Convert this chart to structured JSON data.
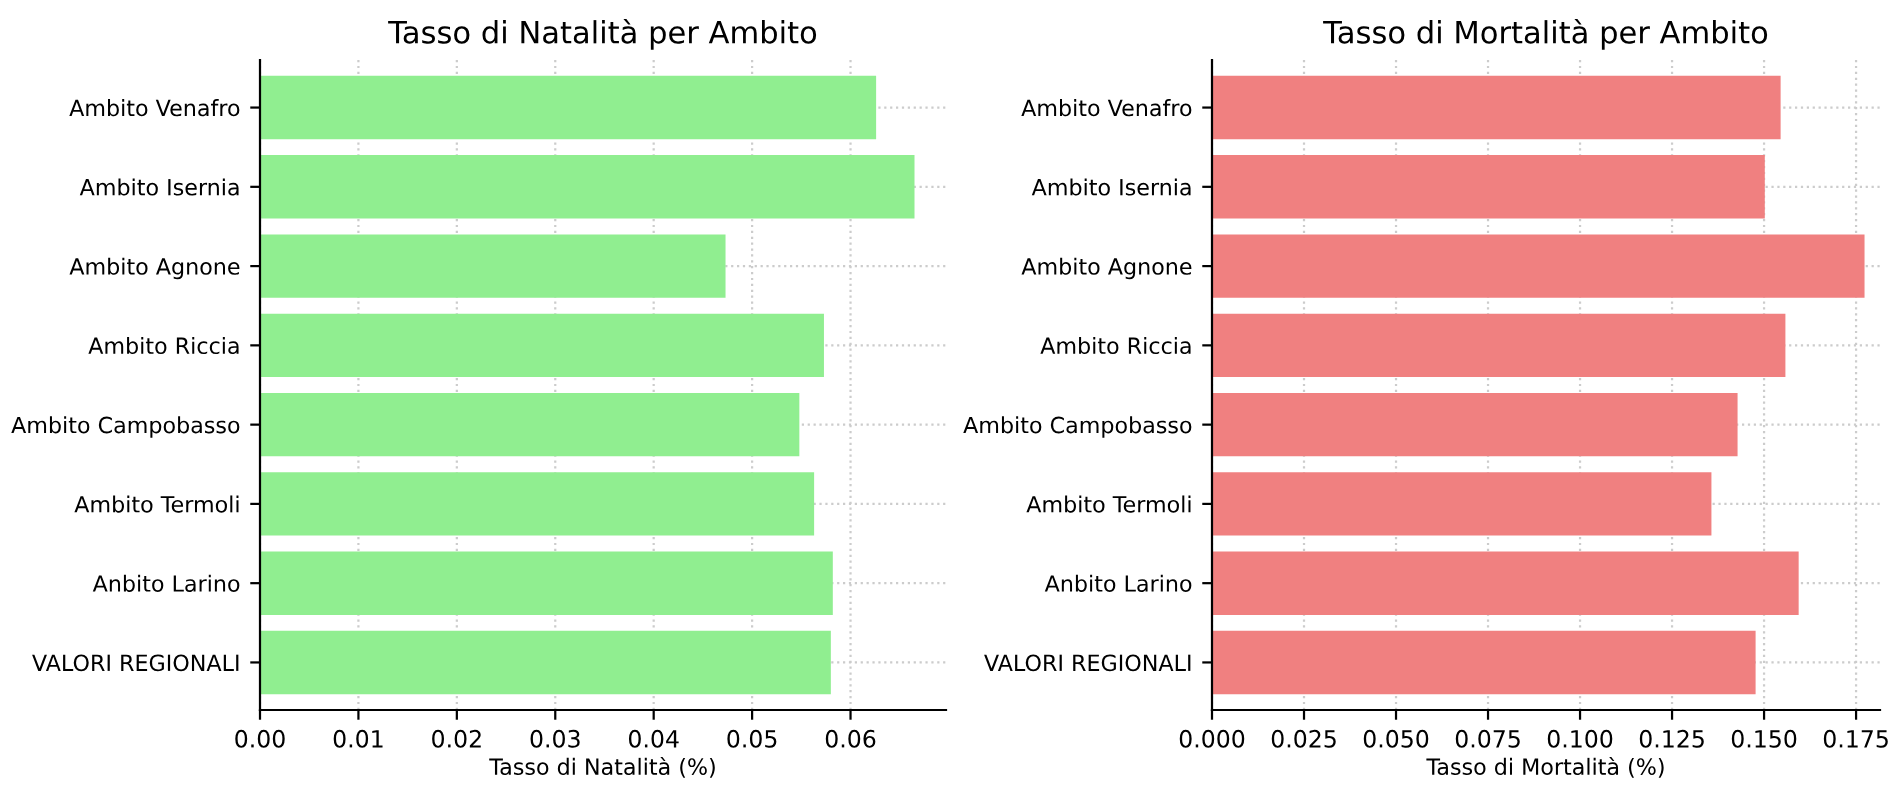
{
  "chart_data": [
    {
      "type": "bar",
      "orientation": "horizontal",
      "title": "Tasso di Natalità per Ambito",
      "xlabel": "Tasso di Natalità (%)",
      "categories": [
        "Ambito Venafro",
        "Ambito Isernia",
        "Ambito Agnone",
        "Ambito Riccia",
        "Ambito Campobasso",
        "Ambito Termoli",
        "Anbito Larino",
        "VALORI REGIONALI"
      ],
      "values": [
        0.0626,
        0.0665,
        0.0473,
        0.0573,
        0.0548,
        0.0563,
        0.0582,
        0.058
      ],
      "color": "#90ee90",
      "xlim": [
        0,
        0.0697
      ],
      "xticks": [
        {
          "value": 0,
          "label": "0.00"
        },
        0.01,
        0.02,
        0.03,
        0.04,
        0.05,
        0.06
      ],
      "grid": true
    },
    {
      "type": "bar",
      "orientation": "horizontal",
      "title": "Tasso di Mortalità per Ambito",
      "xlabel": "Tasso di Mortalità (%)",
      "categories": [
        "Ambito Venafro",
        "Ambito Isernia",
        "Ambito Agnone",
        "Ambito Riccia",
        "Ambito Campobasso",
        "Ambito Termoli",
        "Anbito Larino",
        "VALORI REGIONALI"
      ],
      "values": [
        0.1545,
        0.1502,
        0.1773,
        0.1558,
        0.1428,
        0.1357,
        0.1594,
        0.1477
      ],
      "color": "#f08080",
      "xlim": [
        0,
        0.1815
      ],
      "xticks": [
        {
          "value": 0,
          "label": "0.000"
        },
        0.025,
        {
          "value": 0.05,
          "label": "0.050"
        },
        0.075,
        {
          "value": 0.1,
          "label": "0.100"
        },
        0.125,
        {
          "value": 0.15,
          "label": "0.150"
        },
        0.175
      ],
      "grid": true
    }
  ]
}
